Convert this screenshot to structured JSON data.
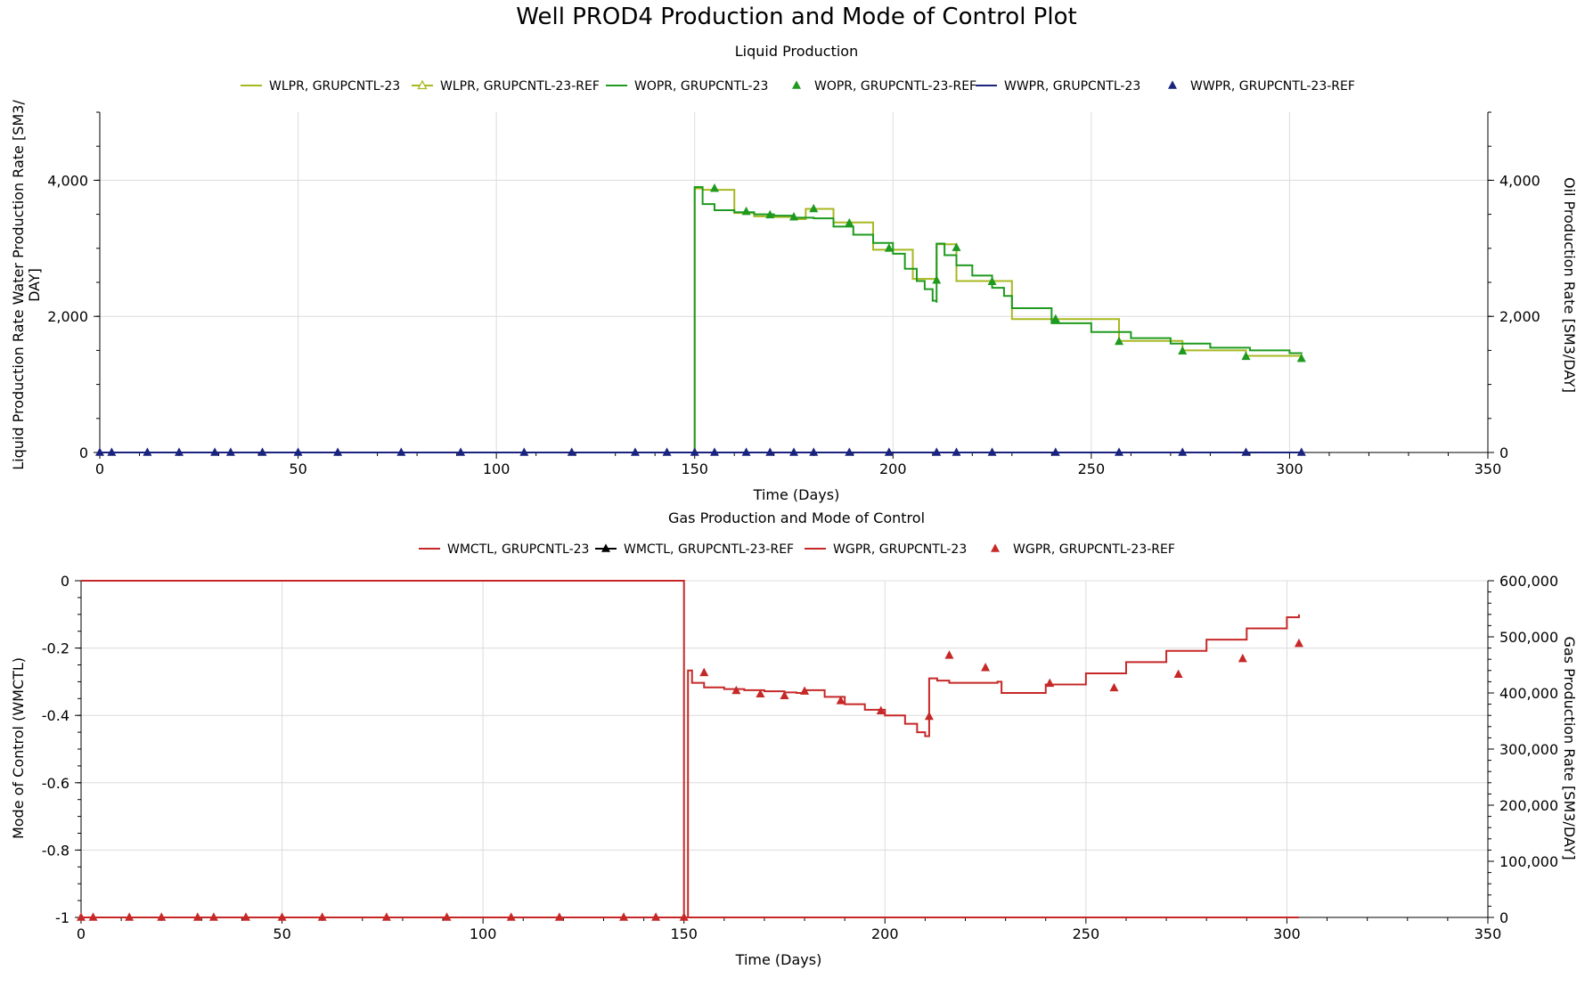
{
  "title": "Well PROD4 Production and Mode of Control Plot",
  "chart_data": [
    {
      "type": "line",
      "title": "Liquid Production",
      "xlabel": "Time (Days)",
      "ylabel_left": "Liquid Production Rate Water Production Rate [SM3/DAY]",
      "ylabel_right": "Oil Production Rate [SM3/DAY]",
      "xlim": [
        0,
        350
      ],
      "ylim_left": [
        0,
        5000
      ],
      "ylim_right": [
        0,
        5000
      ],
      "xticks": [
        0,
        50,
        100,
        150,
        200,
        250,
        300,
        350
      ],
      "xtick_labels": [
        "0",
        "50",
        "100",
        "150",
        "200",
        "250",
        "300",
        "350"
      ],
      "yticks_left": [
        0,
        2000,
        4000
      ],
      "ytick_labels_left": [
        "0",
        "2,000",
        "4,000"
      ],
      "yticks_right": [
        0,
        2000,
        4000
      ],
      "ytick_labels_right": [
        "0",
        "2,000",
        "4,000"
      ],
      "grid": true,
      "legend_position": "top",
      "series": [
        {
          "name": "WLPR, GRUPCNTL-23",
          "color": "#a8b820",
          "style": "step-line",
          "axis": "left",
          "x": [
            0,
            150,
            150,
            151,
            152,
            153,
            155,
            160,
            165,
            170,
            175,
            178,
            180,
            185,
            190,
            195,
            199,
            205,
            211,
            211,
            214,
            216,
            220,
            225,
            230,
            241,
            257,
            273,
            289,
            303
          ],
          "y": [
            0,
            0,
            3880,
            3880,
            3860,
            3860,
            3860,
            3520,
            3470,
            3460,
            3430,
            3580,
            3580,
            3380,
            3380,
            2980,
            2980,
            2550,
            2550,
            3060,
            3060,
            2520,
            2520,
            2520,
            1960,
            1960,
            1640,
            1500,
            1420,
            1390
          ]
        },
        {
          "name": "WLPR, GRUPCNTL-23-REF",
          "color": "#a8b820",
          "style": "hollow-triangle-line",
          "axis": "left",
          "x": [],
          "y": []
        },
        {
          "name": "WOPR, GRUPCNTL-23",
          "color": "#1e9a1e",
          "style": "step-line",
          "axis": "right",
          "x": [
            0,
            150,
            150,
            151,
            152,
            155,
            160,
            165,
            170,
            175,
            180,
            185,
            190,
            195,
            200,
            203,
            206,
            208,
            210,
            211,
            211,
            213,
            216,
            220,
            225,
            228,
            230,
            240,
            250,
            260,
            270,
            280,
            290,
            300,
            303
          ],
          "y": [
            0,
            0,
            3900,
            3900,
            3650,
            3560,
            3530,
            3500,
            3480,
            3450,
            3440,
            3320,
            3200,
            3080,
            2920,
            2700,
            2520,
            2400,
            2230,
            2200,
            3070,
            2900,
            2750,
            2600,
            2420,
            2300,
            2120,
            1900,
            1770,
            1680,
            1600,
            1540,
            1500,
            1460,
            1450
          ]
        },
        {
          "name": "WOPR, GRUPCNTL-23-REF",
          "color": "#1e9a1e",
          "style": "triangle-markers",
          "axis": "right",
          "x": [
            155,
            163,
            169,
            175,
            180,
            189,
            199,
            211,
            216,
            225,
            241,
            257,
            273,
            289,
            303
          ],
          "y": [
            3880,
            3540,
            3490,
            3460,
            3580,
            3370,
            3000,
            2530,
            3010,
            2510,
            1960,
            1630,
            1490,
            1410,
            1380
          ]
        },
        {
          "name": "WWPR, GRUPCNTL-23",
          "color": "#1a237e",
          "style": "line",
          "axis": "left",
          "x": [
            0,
            303
          ],
          "y": [
            0,
            0
          ]
        },
        {
          "name": "WWPR, GRUPCNTL-23-REF",
          "color": "#1a237e",
          "style": "triangle-markers",
          "axis": "left",
          "x": [
            0,
            3,
            12,
            20,
            29,
            33,
            41,
            50,
            60,
            76,
            91,
            107,
            119,
            135,
            143,
            150,
            155,
            163,
            169,
            175,
            180,
            189,
            199,
            211,
            216,
            225,
            241,
            257,
            273,
            289,
            303
          ],
          "y": [
            0,
            0,
            0,
            0,
            0,
            0,
            0,
            0,
            0,
            0,
            0,
            0,
            0,
            0,
            0,
            0,
            0,
            0,
            0,
            0,
            0,
            0,
            0,
            0,
            0,
            0,
            0,
            0,
            0,
            0,
            0
          ]
        }
      ]
    },
    {
      "type": "line",
      "title": "Gas Production and Mode of Control",
      "xlabel": "Time (Days)",
      "ylabel_left": "Mode of Control (WMCTL)",
      "ylabel_right": "Gas Production Rate [SM3/DAY]",
      "xlim": [
        0,
        350
      ],
      "ylim_left": [
        -1,
        0
      ],
      "ylim_right": [
        0,
        600000
      ],
      "xticks": [
        0,
        50,
        100,
        150,
        200,
        250,
        300,
        350
      ],
      "xtick_labels": [
        "0",
        "50",
        "100",
        "150",
        "200",
        "250",
        "300",
        "350"
      ],
      "yticks_left": [
        0,
        -0.2,
        -0.4,
        -0.6,
        -0.8,
        -1
      ],
      "ytick_labels_left": [
        "0",
        "-0.2",
        "-0.4",
        "-0.6",
        "-0.8",
        "-1"
      ],
      "yticks_right": [
        0,
        100000,
        200000,
        300000,
        400000,
        500000,
        600000
      ],
      "ytick_labels_right": [
        "0",
        "100,000",
        "200,000",
        "300,000",
        "400,000",
        "500,000",
        "600,000"
      ],
      "grid": true,
      "legend_position": "top",
      "series": [
        {
          "name": "WMCTL, GRUPCNTL-23",
          "color": "#c62828",
          "style": "step-line",
          "axis": "left",
          "x": [
            0,
            303
          ],
          "y": [
            -1,
            -1
          ]
        },
        {
          "name": "WMCTL, GRUPCNTL-23-REF",
          "color": "#000000",
          "style": "triangle-line",
          "axis": "left",
          "x": [],
          "y": []
        },
        {
          "name": "WGPR, GRUPCNTL-23",
          "color": "#c62828",
          "style": "step-line",
          "axis": "right",
          "x": [
            0,
            150,
            150,
            151,
            151,
            152,
            155,
            160,
            165,
            170,
            175,
            178,
            180,
            185,
            190,
            195,
            200,
            205,
            208,
            210,
            211,
            211,
            213,
            216,
            220,
            225,
            228,
            229,
            229,
            240,
            250,
            260,
            270,
            280,
            290,
            300,
            303
          ],
          "y": [
            600000,
            600000,
            0,
            0,
            440000,
            418000,
            410000,
            407000,
            405000,
            403000,
            401000,
            400000,
            405000,
            393000,
            380000,
            370000,
            360000,
            345000,
            330000,
            323000,
            323000,
            426000,
            422000,
            418000,
            418000,
            418000,
            420000,
            420000,
            400000,
            415000,
            435000,
            455000,
            475000,
            495000,
            515000,
            535000,
            540000
          ]
        },
        {
          "name": "WGPR, GRUPCNTL-23-REF",
          "color": "#c62828",
          "style": "triangle-markers",
          "axis": "right",
          "x": [
            0,
            3,
            12,
            20,
            29,
            33,
            41,
            50,
            60,
            76,
            91,
            107,
            119,
            135,
            143,
            150,
            155,
            163,
            169,
            175,
            180,
            189,
            199,
            211,
            216,
            225,
            241,
            257,
            273,
            289,
            303
          ],
          "y": [
            0,
            0,
            0,
            0,
            0,
            0,
            0,
            0,
            0,
            0,
            0,
            0,
            0,
            0,
            0,
            0,
            436000,
            404000,
            398000,
            395000,
            403000,
            386000,
            368000,
            358000,
            467000,
            445000,
            417000,
            409000,
            433000,
            461000,
            488000
          ]
        }
      ]
    }
  ]
}
